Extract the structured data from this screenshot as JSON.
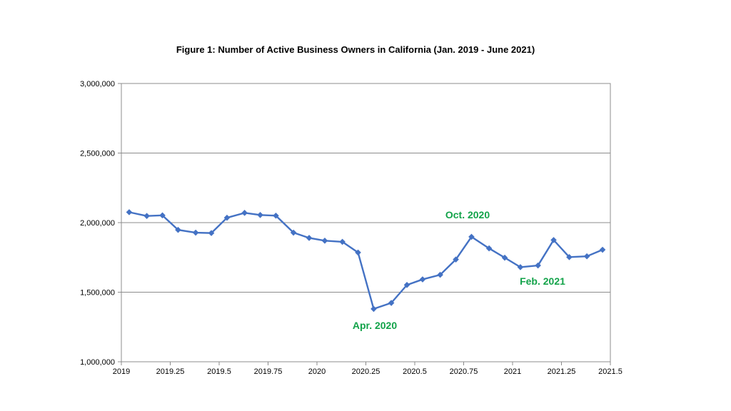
{
  "chart_data": {
    "type": "line",
    "title": "Figure 1: Number of Active Business Owners in California (Jan. 2019 - June 2021)",
    "xlabel": "",
    "ylabel": "",
    "xlim": [
      2019,
      2021.5
    ],
    "ylim": [
      1000000,
      3000000
    ],
    "x_ticks": [
      2019,
      2019.25,
      2019.5,
      2019.75,
      2020,
      2020.25,
      2020.5,
      2020.75,
      2021,
      2021.25,
      2021.5
    ],
    "x_tick_labels": [
      "2019",
      "2019.25",
      "2019.5",
      "2019.75",
      "2020",
      "2020.25",
      "2020.5",
      "2020.75",
      "2021",
      "2021.25",
      "2021.5"
    ],
    "y_ticks": [
      1000000,
      1500000,
      2000000,
      2500000,
      3000000
    ],
    "y_tick_labels": [
      "1,000,000",
      "1,500,000",
      "2,000,000",
      "2,500,000",
      "3,000,000"
    ],
    "grid": "horizontal",
    "legend": "none",
    "series": [
      {
        "color": "#4472c4",
        "marker": "diamond",
        "points": [
          {
            "x": 2019.04,
            "y": 2075000
          },
          {
            "x": 2019.13,
            "y": 2048000
          },
          {
            "x": 2019.21,
            "y": 2052000
          },
          {
            "x": 2019.29,
            "y": 1948000
          },
          {
            "x": 2019.38,
            "y": 1928000
          },
          {
            "x": 2019.46,
            "y": 1925000
          },
          {
            "x": 2019.54,
            "y": 2035000
          },
          {
            "x": 2019.63,
            "y": 2070000
          },
          {
            "x": 2019.71,
            "y": 2055000
          },
          {
            "x": 2019.79,
            "y": 2050000
          },
          {
            "x": 2019.88,
            "y": 1928000
          },
          {
            "x": 2019.96,
            "y": 1890000
          },
          {
            "x": 2020.04,
            "y": 1870000
          },
          {
            "x": 2020.13,
            "y": 1862000
          },
          {
            "x": 2020.21,
            "y": 1785000
          },
          {
            "x": 2020.29,
            "y": 1380000
          },
          {
            "x": 2020.38,
            "y": 1423000
          },
          {
            "x": 2020.46,
            "y": 1552000
          },
          {
            "x": 2020.54,
            "y": 1592000
          },
          {
            "x": 2020.63,
            "y": 1625000
          },
          {
            "x": 2020.71,
            "y": 1735000
          },
          {
            "x": 2020.79,
            "y": 1898000
          },
          {
            "x": 2020.88,
            "y": 1815000
          },
          {
            "x": 2020.96,
            "y": 1748000
          },
          {
            "x": 2021.04,
            "y": 1680000
          },
          {
            "x": 2021.13,
            "y": 1692000
          },
          {
            "x": 2021.21,
            "y": 1875000
          },
          {
            "x": 2021.29,
            "y": 1752000
          },
          {
            "x": 2021.38,
            "y": 1758000
          },
          {
            "x": 2021.46,
            "y": 1805000
          }
        ]
      }
    ],
    "annotations": [
      {
        "text": "Apr. 2020",
        "color": "#13a34a"
      },
      {
        "text": "Oct. 2020",
        "color": "#13a34a"
      },
      {
        "text": "Feb. 2021",
        "color": "#13a34a"
      }
    ]
  }
}
